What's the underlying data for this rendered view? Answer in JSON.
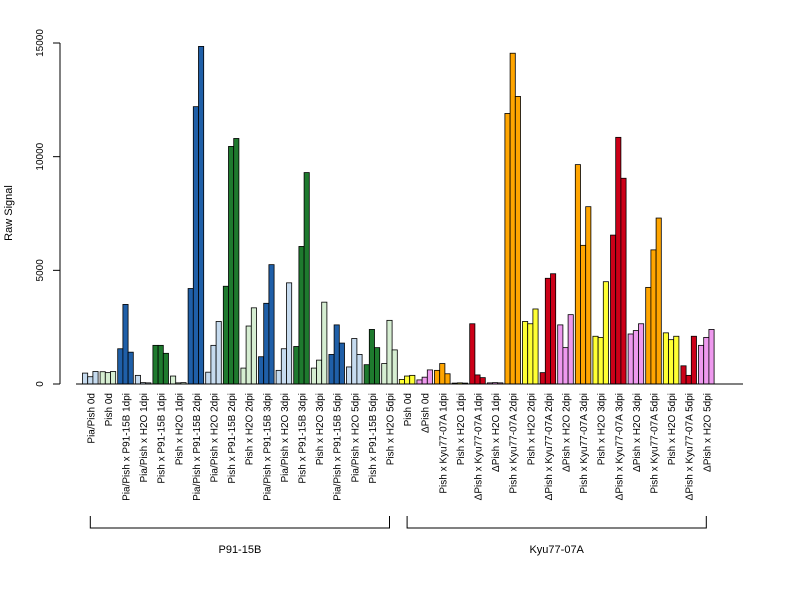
{
  "chart_data": {
    "type": "bar",
    "ylabel": "Raw Signal",
    "xlabel": "",
    "ylim": [
      0,
      15000
    ],
    "yticks": [
      0,
      5000,
      10000,
      15000
    ],
    "grid": false,
    "colors": {
      "light_blue": "#c6dbef",
      "blue": "#1f5fa8",
      "green": "#1e7a2e",
      "light_green": "#d6eed2",
      "yellow": "#ffff33",
      "violet": "#ee99ee",
      "red": "#cc0018",
      "orange": "#ffa500"
    },
    "categories": [
      {
        "label": "Pia/Pish 0d",
        "color": "light_blue",
        "values": [
          480,
          320,
          550
        ]
      },
      {
        "label": "Pish 0d",
        "color": "light_green",
        "values": [
          540,
          500,
          550
        ]
      },
      {
        "label": "Pia/Pish x P91-15B 1dpi",
        "color": "blue",
        "values": [
          1550,
          3500,
          1400
        ]
      },
      {
        "label": "Pia/Pish x H2O 1dpi",
        "color": "light_blue",
        "values": [
          380,
          60,
          50
        ]
      },
      {
        "label": "Pish x P91-15B 1dpi",
        "color": "green",
        "values": [
          1700,
          1700,
          1350
        ]
      },
      {
        "label": "Pish x H2O 1dpi",
        "color": "light_green",
        "values": [
          350,
          50,
          60
        ]
      },
      {
        "label": "Pia/Pish x P91-15B 2dpi",
        "color": "blue",
        "values": [
          4200,
          12200,
          14850
        ]
      },
      {
        "label": "Pia/Pish x H2O 2dpi",
        "color": "light_blue",
        "values": [
          520,
          1700,
          2750
        ]
      },
      {
        "label": "Pish x P91-15B 2dpi",
        "color": "green",
        "values": [
          4300,
          10450,
          10800
        ]
      },
      {
        "label": "Pish x H2O 2dpi",
        "color": "light_green",
        "values": [
          700,
          2550,
          3350
        ]
      },
      {
        "label": "Pia/Pish x P91-15B 3dpi",
        "color": "blue",
        "values": [
          1200,
          3550,
          5250
        ]
      },
      {
        "label": "Pia/Pish x H2O 3dpi",
        "color": "light_blue",
        "values": [
          600,
          1550,
          4450
        ]
      },
      {
        "label": "Pish x P91-15B 3dpi",
        "color": "green",
        "values": [
          1650,
          6050,
          9300
        ]
      },
      {
        "label": "Pish x H2O 3dpi",
        "color": "light_green",
        "values": [
          700,
          1050,
          3600
        ]
      },
      {
        "label": "Pia/Pish x P91-15B 5dpi",
        "color": "blue",
        "values": [
          1300,
          2600,
          1800
        ]
      },
      {
        "label": "Pia/Pish x H2O 5dpi",
        "color": "light_blue",
        "values": [
          750,
          2000,
          1300
        ]
      },
      {
        "label": "Pish x P91-15B 5dpi",
        "color": "green",
        "values": [
          850,
          2400,
          1600
        ]
      },
      {
        "label": "Pish x H2O 5dpi",
        "color": "light_green",
        "values": [
          900,
          2800,
          1500
        ]
      },
      {
        "label": "Pish 0d",
        "color": "yellow",
        "values": [
          200,
          350,
          380
        ]
      },
      {
        "label": "ΔPish 0d",
        "color": "violet",
        "values": [
          180,
          300,
          620
        ]
      },
      {
        "label": "Pish x Kyu77-07A 1dpi",
        "color": "orange",
        "values": [
          600,
          900,
          450
        ]
      },
      {
        "label": "Pish x H2O 1dpi",
        "color": "yellow",
        "values": [
          40,
          50,
          40
        ]
      },
      {
        "label": "ΔPish x Kyu77-07A 1dpi",
        "color": "red",
        "values": [
          2650,
          400,
          280
        ]
      },
      {
        "label": "ΔPish x H2O 1dpi",
        "color": "violet",
        "values": [
          50,
          60,
          50
        ]
      },
      {
        "label": "Pish x Kyu77-07A 2dpi",
        "color": "orange",
        "values": [
          11900,
          14550,
          12650
        ]
      },
      {
        "label": "Pish x H2O 2dpi",
        "color": "yellow",
        "values": [
          2750,
          2650,
          3300
        ]
      },
      {
        "label": "ΔPish x Kyu77-07A 2dpi",
        "color": "red",
        "values": [
          500,
          4650,
          4850
        ]
      },
      {
        "label": "ΔPish x H2O 2dpi",
        "color": "violet",
        "values": [
          2600,
          1600,
          3050
        ]
      },
      {
        "label": "Pish x Kyu77-07A 3dpi",
        "color": "orange",
        "values": [
          9650,
          6100,
          7800
        ]
      },
      {
        "label": "Pish x H2O 3dpi",
        "color": "yellow",
        "values": [
          2100,
          2050,
          4500
        ]
      },
      {
        "label": "ΔPish x Kyu77-07A 3dpi",
        "color": "red",
        "values": [
          6550,
          10850,
          9050
        ]
      },
      {
        "label": "ΔPish x H2O 3dpi",
        "color": "violet",
        "values": [
          2200,
          2350,
          2650
        ]
      },
      {
        "label": "Pish x Kyu77-07A 5dpi",
        "color": "orange",
        "values": [
          4250,
          5900,
          7300
        ]
      },
      {
        "label": "Pish x H2O 5dpi",
        "color": "yellow",
        "values": [
          2250,
          1950,
          2100
        ]
      },
      {
        "label": "ΔPish x Kyu77-07A 5dpi",
        "color": "red",
        "values": [
          800,
          380,
          2100
        ]
      },
      {
        "label": "ΔPish x H2O 5dpi",
        "color": "violet",
        "values": [
          1700,
          2050,
          2400
        ]
      }
    ],
    "groups": [
      {
        "label": "P91-15B",
        "first": 0,
        "last": 17
      },
      {
        "label": "Kyu77-07A",
        "first": 18,
        "last": 35
      }
    ]
  }
}
